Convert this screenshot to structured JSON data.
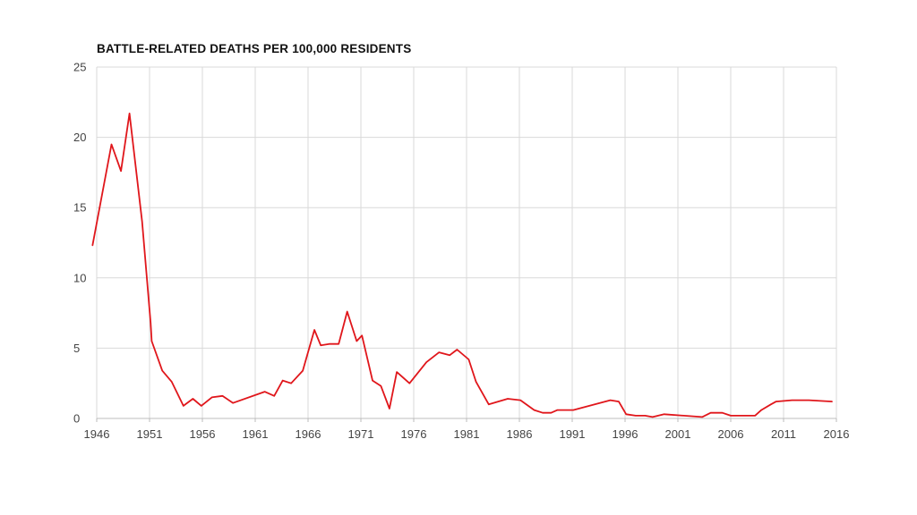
{
  "colors": {
    "line": "#e0161b",
    "grid": "#d9d9d9",
    "text": "#444444",
    "title": "#111111"
  },
  "chart_data": {
    "type": "line",
    "title": "BATTLE-RELATED DEATHS PER 100,000 RESIDENTS",
    "xlabel": "",
    "ylabel": "",
    "xlim": [
      1946,
      2016
    ],
    "ylim": [
      0,
      25
    ],
    "x_ticks": [
      "1946",
      "1951",
      "1956",
      "1961",
      "1966",
      "1971",
      "1976",
      "1981",
      "1986",
      "1991",
      "1996",
      "2001",
      "2006",
      "2011",
      "2016"
    ],
    "y_ticks": [
      "0",
      "5",
      "10",
      "15",
      "20",
      "25"
    ],
    "grid": "both",
    "legend": "none",
    "series": [
      {
        "x": [
          1945.6,
          1947.4,
          1948.3,
          1949.1,
          1950.3,
          1951.1,
          1951.2,
          1952.2,
          1953.1,
          1954.2,
          1955.1,
          1955.9,
          1956.9,
          1957.9,
          1958.9,
          1961.9,
          1962.8,
          1963.6,
          1964.4,
          1965.5,
          1966.6,
          1967.2,
          1968.0,
          1968.9,
          1969.7,
          1970.6,
          1971.1,
          1972.1,
          1972.9,
          1973.7,
          1974.4,
          1975.6,
          1977.2,
          1978.4,
          1979.4,
          1980.1,
          1981.2,
          1981.9,
          1983.1,
          1984.9,
          1986.1,
          1987.4,
          1988.2,
          1989.0,
          1989.6,
          1991.1,
          1994.6,
          1995.4,
          1996.1,
          1997.0,
          1997.9,
          1998.6,
          1999.7,
          2003.3,
          2004.1,
          2005.2,
          2006.0,
          2008.3,
          2008.9,
          2009.8,
          2010.3,
          2011.8,
          2013.4,
          2015.6
        ],
        "y": [
          12.3,
          19.5,
          17.6,
          21.7,
          14.0,
          6.8,
          5.5,
          3.4,
          2.6,
          0.9,
          1.4,
          0.9,
          1.5,
          1.6,
          1.1,
          1.9,
          1.6,
          2.7,
          2.5,
          3.4,
          6.3,
          5.2,
          5.3,
          5.3,
          7.6,
          5.5,
          5.9,
          2.7,
          2.3,
          0.7,
          3.3,
          2.5,
          4.0,
          4.7,
          4.5,
          4.9,
          4.2,
          2.6,
          1.0,
          1.4,
          1.3,
          0.6,
          0.4,
          0.4,
          0.6,
          0.6,
          1.3,
          1.2,
          0.3,
          0.2,
          0.2,
          0.1,
          0.3,
          0.1,
          0.4,
          0.4,
          0.2,
          0.2,
          0.6,
          1.0,
          1.2,
          1.3,
          1.3,
          1.2
        ]
      }
    ]
  }
}
